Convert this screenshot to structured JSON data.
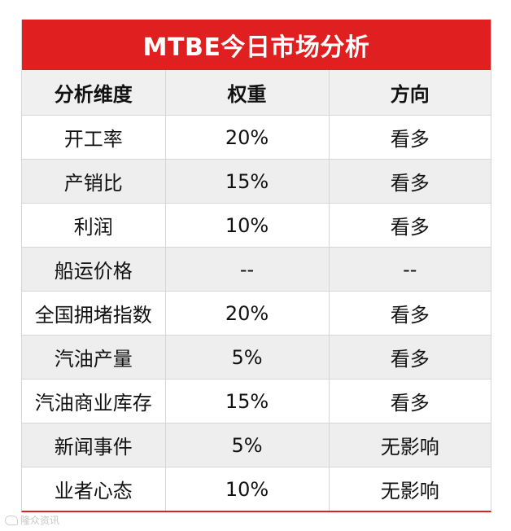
{
  "title": "MTBE今日市场分析",
  "headers": [
    "分析维度",
    "权重",
    "方向"
  ],
  "rows": [
    [
      "开工率",
      "20%",
      "看多"
    ],
    [
      "产销比",
      "15%",
      "看多"
    ],
    [
      "利润",
      "10%",
      "看多"
    ],
    [
      "船运价格",
      "--",
      "--"
    ],
    [
      "全国拥堵指数",
      "20%",
      "看多"
    ],
    [
      "汽油产量",
      "5%",
      "看多"
    ],
    [
      "汽油商业库存",
      "15%",
      "看多"
    ],
    [
      "新闻事件",
      "5%",
      "无影响"
    ],
    [
      "业者心态",
      "10%",
      "无影响"
    ]
  ],
  "watermark": {
    "text": "隆众资讯",
    "icon": "weibo-icon"
  },
  "colors": {
    "title_bg": "#e02020",
    "header_bg": "#f0f0f0",
    "stripe_bg": "#eeeeee"
  }
}
